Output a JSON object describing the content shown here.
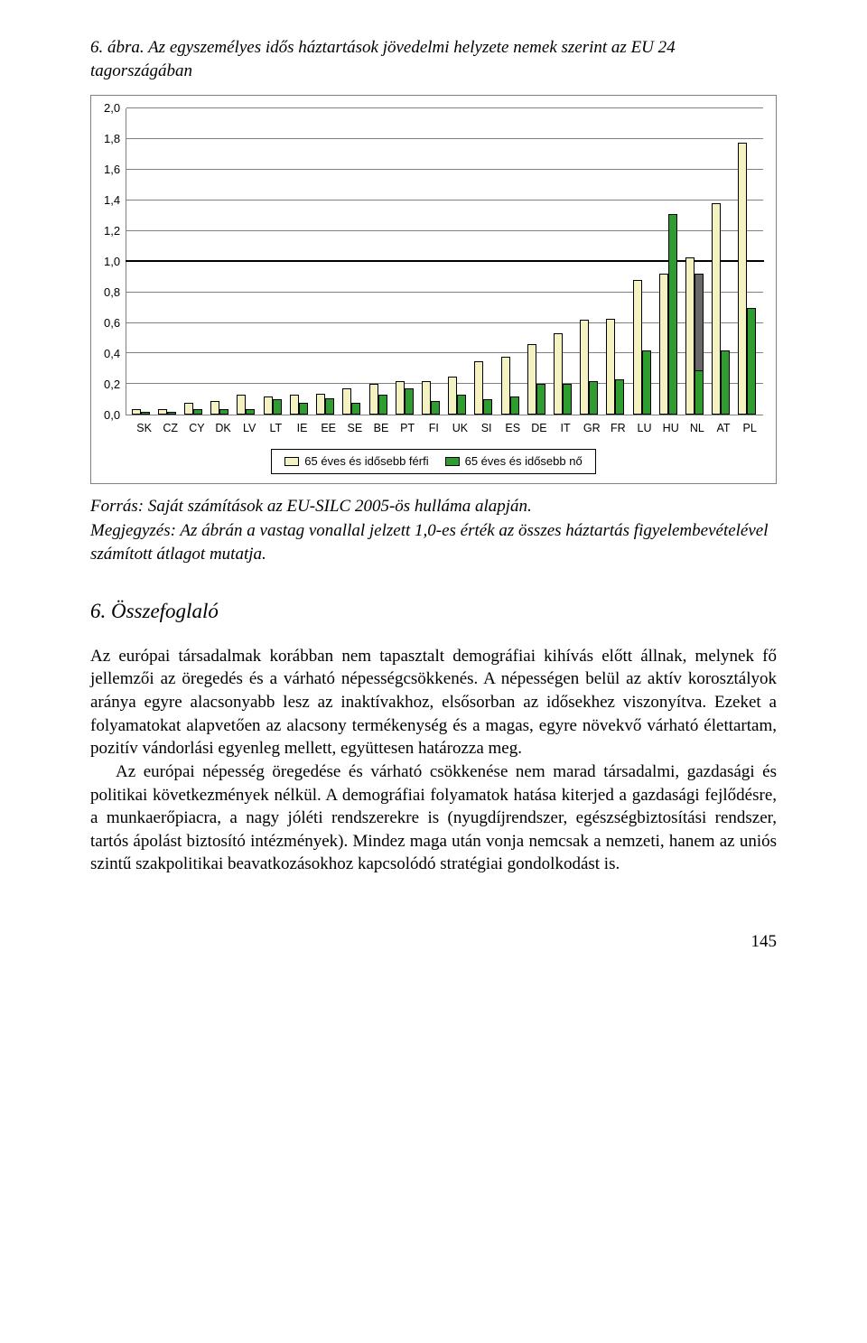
{
  "figure": {
    "title_prefix": "6. ábra. ",
    "title_rest": "Az egyszemélyes idős háztartások jövedelmi helyzete nemek szerint az EU 24 tagországában",
    "chart": {
      "type": "bar",
      "ylim": [
        0.0,
        2.0
      ],
      "ytick_step": 0.2,
      "ytick_labels": [
        "2,0",
        "1,8",
        "1,6",
        "1,4",
        "1,2",
        "1,0",
        "0,8",
        "0,6",
        "0,4",
        "0,2",
        "0,0"
      ],
      "reference_line": 1.0,
      "grid_color": "#808080",
      "background_color": "#ffffff",
      "bar_border": "#000000",
      "categories": [
        "SK",
        "CZ",
        "CY",
        "DK",
        "LV",
        "LT",
        "IE",
        "EE",
        "SE",
        "BE",
        "PT",
        "FI",
        "UK",
        "SI",
        "ES",
        "DE",
        "IT",
        "GR",
        "FR",
        "LU",
        "HU",
        "NL",
        "AT",
        "PL"
      ],
      "series": [
        {
          "name": "65 éves és idősebb férfi",
          "color": "#f5f2c2",
          "swatch_border": "#000000",
          "values": [
            0.04,
            0.04,
            0.08,
            0.09,
            0.13,
            0.12,
            0.13,
            0.14,
            0.17,
            0.2,
            0.22,
            0.22,
            0.25,
            0.35,
            0.38,
            0.46,
            0.53,
            0.62,
            0.63,
            0.88,
            0.92,
            1.03,
            1.38,
            1.78
          ]
        },
        {
          "name": "65 éves és idősebb nő",
          "color": "#2e9c2e",
          "swatch_border": "#000000",
          "values": [
            0.02,
            0.02,
            0.04,
            0.04,
            0.04,
            0.1,
            0.08,
            0.11,
            0.08,
            0.13,
            0.17,
            0.09,
            0.13,
            0.1,
            0.12,
            0.2,
            0.2,
            0.22,
            0.23,
            0.42,
            1.31,
            0.29,
            0.42,
            0.7
          ]
        },
        {
          "name_overlay_country": "NL",
          "overlay_color": "#696969",
          "overlay_value": 0.92
        }
      ],
      "font_family": "Arial",
      "axis_fontsize": 13,
      "legend_fontsize": 13,
      "reference_line_color": "#000000",
      "reference_line_width": 2.5
    },
    "source_label": "Forrás: ",
    "source_text": "Saját számítások az EU-SILC 2005-ös hulláma alapján.",
    "note_label": "Megjegyzés: ",
    "note_text": "Az ábrán a vastag vonallal jelzett 1,0-es érték az összes háztartás figyelembevételével számított átlagot mutatja."
  },
  "section": {
    "heading": "6. Összefoglaló",
    "paragraph1": "Az európai társadalmak korábban nem tapasztalt demográfiai kihívás előtt állnak, melynek fő jellemzői az öregedés és a várható népességcsökkenés. A népességen belül az aktív korosztályok aránya egyre alacsonyabb lesz az inaktívakhoz, elsősorban az idősekhez viszonyítva. Ezeket a folyamatokat alapvetően az alacsony termékenység és a magas, egyre növekvő várható élettartam, pozitív vándorlási egyenleg mellett, együttesen határozza meg.",
    "paragraph2": "Az európai népesség öregedése és várható csökkenése nem marad társadalmi, gazdasági és politikai következmények nélkül. A demográfiai folyamatok hatása kiterjed a gazdasági fejlődésre, a munkaerőpiacra, a nagy jóléti rendszerekre is (nyugdíjrendszer, egészségbiztosítási rendszer, tartós ápolást biztosító intézmények). Mindez maga után vonja nemcsak a nemzeti, hanem az uniós szintű szakpolitikai beavatkozásokhoz kapcsolódó stratégiai gondolkodást is."
  },
  "page_number": "145"
}
